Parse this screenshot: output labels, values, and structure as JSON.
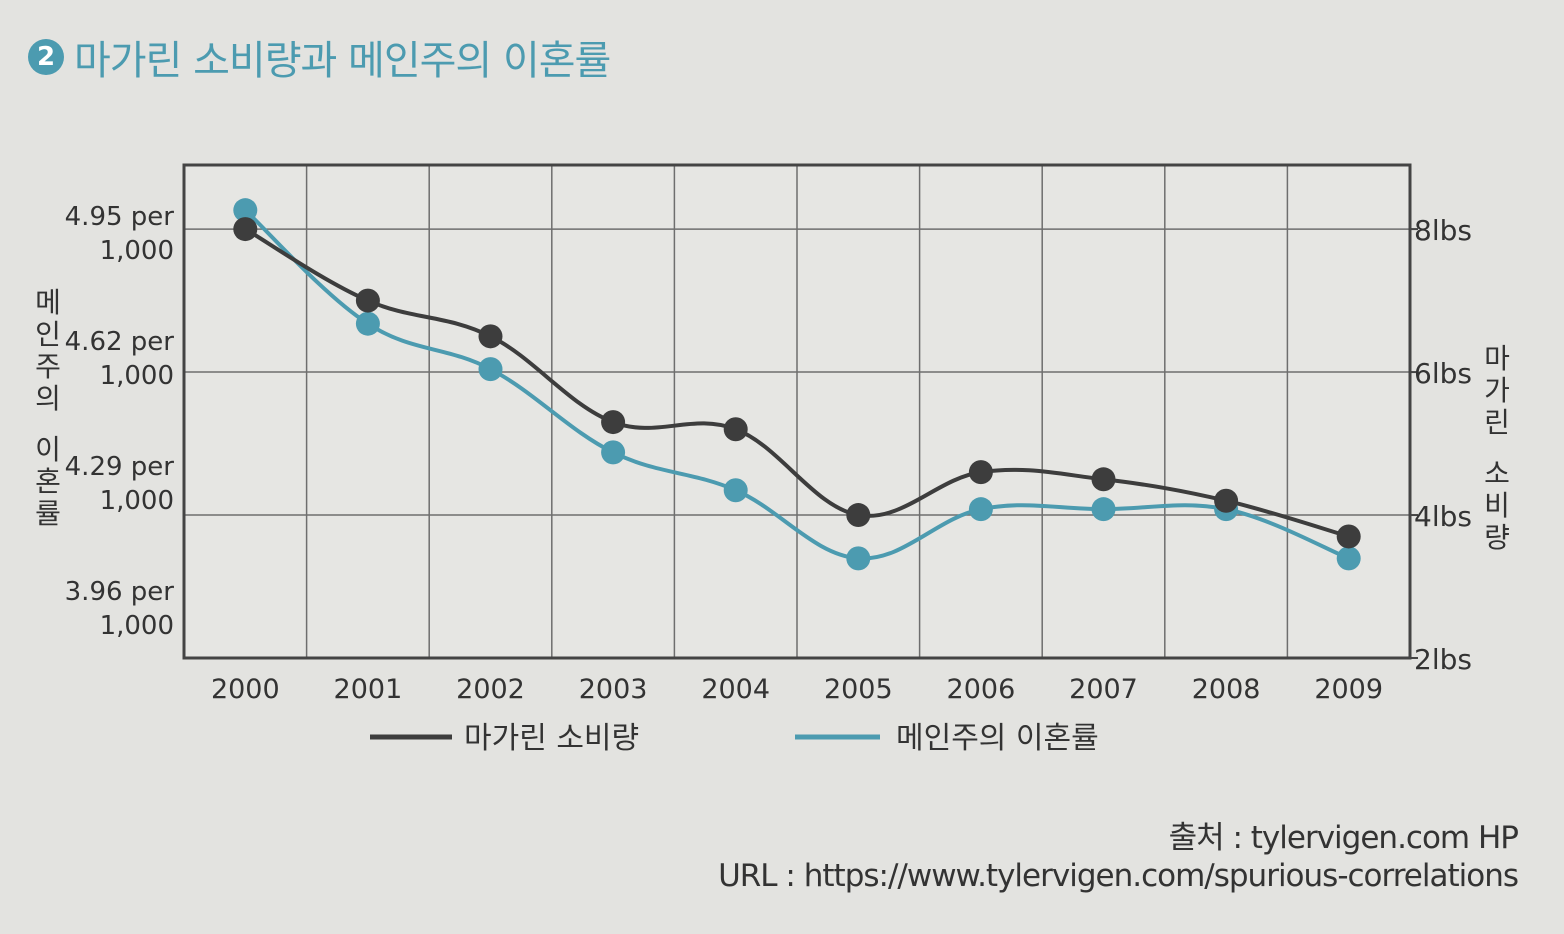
{
  "title": {
    "number": "2",
    "text": "마가린 소비량과 메인주의 이혼률"
  },
  "source": {
    "label": "출처",
    "value": "tylervigen.com HP"
  },
  "url": {
    "label": "URL",
    "value": "https://www.tylervigen.com/spurious-correlations"
  },
  "colors": {
    "margarine": "#3d3d3d",
    "divorce": "#4c9bb0",
    "grid": "#6e6e6e",
    "title": "#4c9bb0"
  },
  "chart_data": {
    "type": "line",
    "x": [
      "2000",
      "2001",
      "2002",
      "2003",
      "2004",
      "2005",
      "2006",
      "2007",
      "2008",
      "2009"
    ],
    "left_axis": {
      "label": "메인주의 이혼률",
      "ticks": [
        {
          "value": 4.95,
          "line1": "4.95 per",
          "line2": "1,000"
        },
        {
          "value": 4.62,
          "line1": "4.62 per",
          "line2": "1,000"
        },
        {
          "value": 4.29,
          "line1": "4.29 per",
          "line2": "1,000"
        },
        {
          "value": 3.96,
          "line1": "3.96 per",
          "line2": "1,000"
        }
      ]
    },
    "right_axis": {
      "label": "마가린 소비량",
      "ticks": [
        {
          "value": 8,
          "label": "8lbs"
        },
        {
          "value": 6,
          "label": "6lbs"
        },
        {
          "value": 4,
          "label": "4lbs"
        },
        {
          "value": 2,
          "label": "2lbs"
        }
      ],
      "ylim": [
        2,
        8
      ]
    },
    "series": [
      {
        "name": "마가린 소비량",
        "axis": "right",
        "color": "#3d3d3d",
        "values": [
          8.0,
          7.0,
          6.5,
          5.3,
          5.2,
          4.0,
          4.6,
          4.5,
          4.2,
          3.7
        ]
      },
      {
        "name": "메인주의 이혼률",
        "axis": "left",
        "color": "#4c9bb0",
        "values": [
          5.0,
          4.7,
          4.58,
          4.36,
          4.26,
          4.08,
          4.21,
          4.21,
          4.21,
          4.08
        ]
      }
    ],
    "legend": "bottom",
    "grid": true
  }
}
